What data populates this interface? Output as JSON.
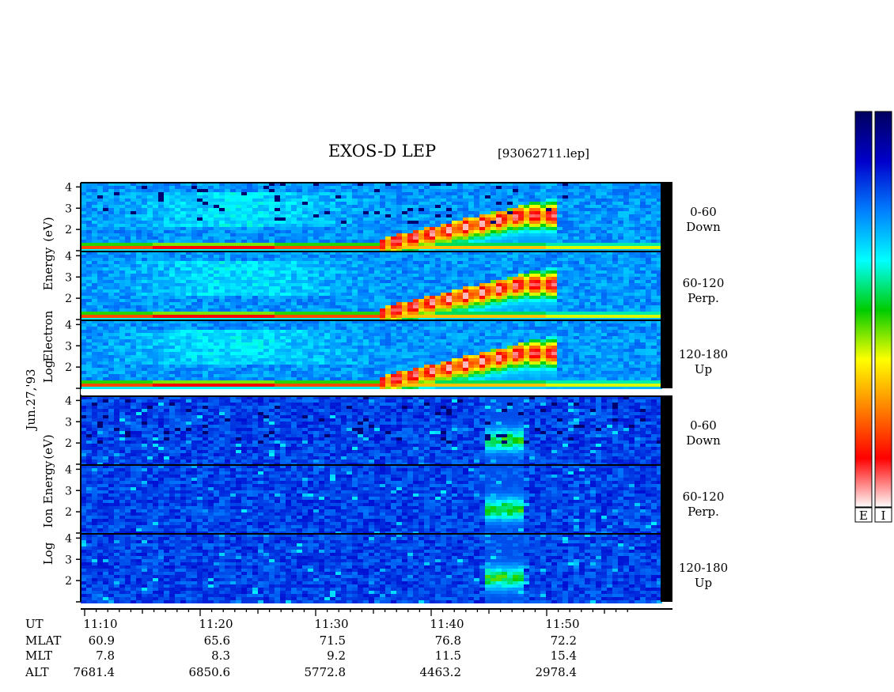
{
  "chart_data": {
    "type": "heatmap",
    "title": "EXOS-D LEP",
    "file_label": "[93062711.lep]",
    "date_label": "Jun.27,'93",
    "electron_ylabel": [
      "Log",
      "Electron",
      "Energy",
      "(eV)"
    ],
    "ion_ylabel": [
      "Log",
      "Ion",
      "Energy",
      "(eV)"
    ],
    "yticks": [
      "1",
      "2",
      "3",
      "4"
    ],
    "ylim": [
      1,
      4.2
    ],
    "xlim_minutes": [
      668,
      717
    ],
    "panels": [
      {
        "group": "electron",
        "angle": "0-60",
        "dir": "Down"
      },
      {
        "group": "electron",
        "angle": "60-120",
        "dir": "Perp."
      },
      {
        "group": "electron",
        "angle": "120-180",
        "dir": "Up"
      },
      {
        "group": "ion",
        "angle": "0-60",
        "dir": "Down"
      },
      {
        "group": "ion",
        "angle": "60-120",
        "dir": "Perp."
      },
      {
        "group": "ion",
        "angle": "120-180",
        "dir": "Up"
      }
    ],
    "colorbars": [
      "E",
      "I"
    ],
    "colorscale": [
      "#ffffff",
      "#ff0000",
      "#ff8000",
      "#ffff00",
      "#00cc00",
      "#00ffff",
      "#0080ff",
      "#0000cc",
      "#000060"
    ],
    "orbit_rows": [
      {
        "label": "UT",
        "values": [
          "11:10",
          "11:20",
          "11:30",
          "11:40",
          "11:50"
        ]
      },
      {
        "label": "MLAT",
        "values": [
          "60.9",
          "65.6",
          "71.5",
          "76.8",
          "72.2"
        ]
      },
      {
        "label": "MLT",
        "values": [
          "7.8",
          "8.3",
          "9.2",
          "11.5",
          "15.4"
        ]
      },
      {
        "label": "ALT",
        "values": [
          "7681.4",
          "6850.6",
          "5772.8",
          "4463.2",
          "2978.4"
        ]
      }
    ],
    "ut_minutes": [
      670,
      680,
      690,
      700,
      710
    ]
  }
}
